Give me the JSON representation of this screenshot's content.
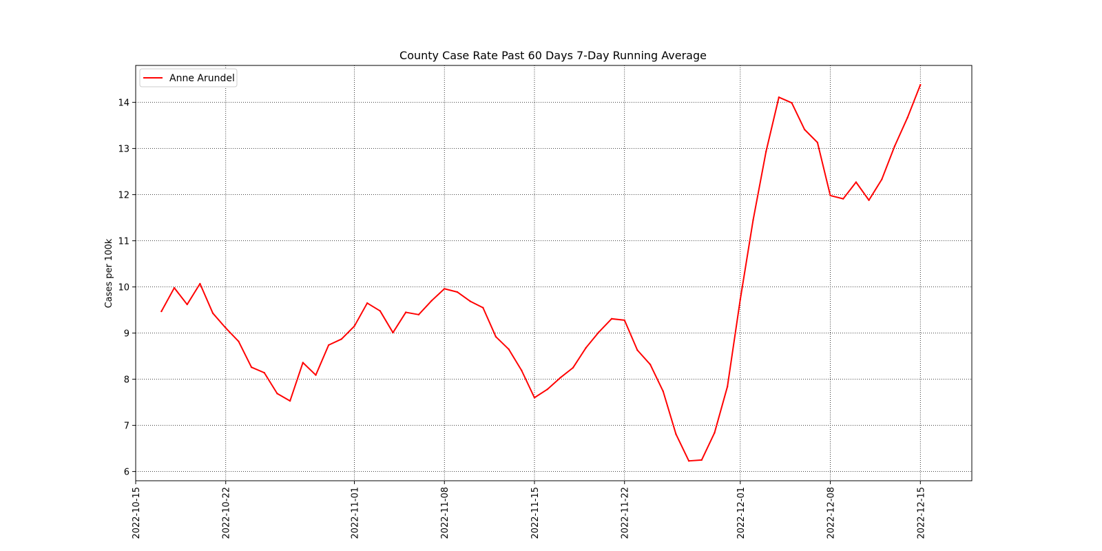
{
  "chart_data": {
    "type": "line",
    "title": "County Case Rate  Past 60 Days 7-Day Running Average",
    "xlabel": "",
    "ylabel": "Cases per 100k",
    "grid": true,
    "grid_style": "dotted",
    "legend_position": "top-left",
    "xlim": [
      "2022-10-15",
      "2022-12-19"
    ],
    "ylim": [
      5.8,
      14.8
    ],
    "x_ticks": [
      "2022-10-15",
      "2022-10-22",
      "2022-11-01",
      "2022-11-08",
      "2022-11-15",
      "2022-11-22",
      "2022-12-01",
      "2022-12-08",
      "2022-12-15"
    ],
    "y_ticks": [
      6,
      7,
      8,
      9,
      10,
      11,
      12,
      13,
      14
    ],
    "series": [
      {
        "name": "Anne Arundel",
        "color": "#ff0000",
        "points": [
          [
            "2022-10-17",
            9.47
          ],
          [
            "2022-10-18",
            9.98
          ],
          [
            "2022-10-19",
            9.62
          ],
          [
            "2022-10-20",
            10.07
          ],
          [
            "2022-10-21",
            9.43
          ],
          [
            "2022-10-22",
            9.11
          ],
          [
            "2022-10-23",
            8.82
          ],
          [
            "2022-10-24",
            8.26
          ],
          [
            "2022-10-25",
            8.14
          ],
          [
            "2022-10-26",
            7.69
          ],
          [
            "2022-10-27",
            7.53
          ],
          [
            "2022-10-28",
            8.36
          ],
          [
            "2022-10-29",
            8.09
          ],
          [
            "2022-10-30",
            8.74
          ],
          [
            "2022-10-31",
            8.87
          ],
          [
            "2022-11-01",
            9.15
          ],
          [
            "2022-11-02",
            9.65
          ],
          [
            "2022-11-03",
            9.48
          ],
          [
            "2022-11-04",
            9.01
          ],
          [
            "2022-11-05",
            9.45
          ],
          [
            "2022-11-06",
            9.4
          ],
          [
            "2022-11-07",
            9.7
          ],
          [
            "2022-11-08",
            9.96
          ],
          [
            "2022-11-09",
            9.89
          ],
          [
            "2022-11-10",
            9.69
          ],
          [
            "2022-11-11",
            9.55
          ],
          [
            "2022-11-12",
            8.92
          ],
          [
            "2022-11-13",
            8.65
          ],
          [
            "2022-11-14",
            8.19
          ],
          [
            "2022-11-15",
            7.6
          ],
          [
            "2022-11-16",
            7.78
          ],
          [
            "2022-11-17",
            8.03
          ],
          [
            "2022-11-18",
            8.25
          ],
          [
            "2022-11-19",
            8.68
          ],
          [
            "2022-11-20",
            9.02
          ],
          [
            "2022-11-21",
            9.31
          ],
          [
            "2022-11-22",
            9.28
          ],
          [
            "2022-11-23",
            8.63
          ],
          [
            "2022-11-24",
            8.32
          ],
          [
            "2022-11-25",
            7.74
          ],
          [
            "2022-11-26",
            6.81
          ],
          [
            "2022-11-27",
            6.23
          ],
          [
            "2022-11-28",
            6.25
          ],
          [
            "2022-11-29",
            6.84
          ],
          [
            "2022-11-30",
            7.84
          ],
          [
            "2022-12-01",
            9.73
          ],
          [
            "2022-12-02",
            11.45
          ],
          [
            "2022-12-03",
            12.93
          ],
          [
            "2022-12-04",
            14.11
          ],
          [
            "2022-12-05",
            13.99
          ],
          [
            "2022-12-06",
            13.41
          ],
          [
            "2022-12-07",
            13.13
          ],
          [
            "2022-12-08",
            11.98
          ],
          [
            "2022-12-09",
            11.91
          ],
          [
            "2022-12-10",
            12.27
          ],
          [
            "2022-12-11",
            11.88
          ],
          [
            "2022-12-12",
            12.33
          ],
          [
            "2022-12-13",
            13.05
          ],
          [
            "2022-12-14",
            13.67
          ],
          [
            "2022-12-15",
            14.38
          ]
        ]
      }
    ]
  }
}
